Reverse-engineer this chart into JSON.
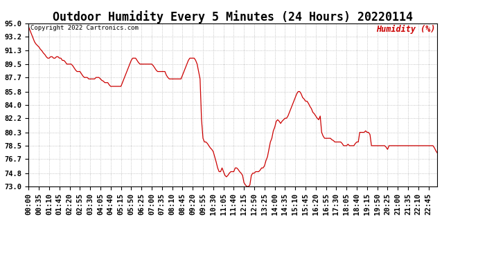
{
  "title": "Outdoor Humidity Every 5 Minutes (24 Hours) 20220114",
  "copyright_text": "Copyright 2022 Cartronics.com",
  "legend_text": "Humidity (%)",
  "line_color": "#cc0000",
  "legend_color": "#cc0000",
  "copyright_color": "#000000",
  "background_color": "#ffffff",
  "grid_color": "#aaaaaa",
  "ylim": [
    73.0,
    95.0
  ],
  "yticks": [
    73.0,
    74.8,
    76.7,
    78.5,
    80.3,
    82.2,
    84.0,
    85.8,
    87.7,
    89.5,
    91.3,
    93.2,
    95.0
  ],
  "title_fontsize": 12,
  "tick_fontsize": 7.5,
  "humidity_values": [
    94.5,
    94.0,
    93.5,
    93.0,
    92.5,
    92.2,
    92.0,
    91.8,
    91.5,
    91.3,
    91.0,
    90.8,
    90.5,
    90.3,
    90.3,
    90.5,
    90.5,
    90.3,
    90.3,
    90.5,
    90.5,
    90.3,
    90.3,
    90.0,
    90.0,
    89.8,
    89.5,
    89.5,
    89.5,
    89.5,
    89.3,
    89.0,
    88.7,
    88.5,
    88.5,
    88.5,
    88.2,
    87.9,
    87.7,
    87.7,
    87.7,
    87.5,
    87.5,
    87.5,
    87.5,
    87.5,
    87.7,
    87.7,
    87.7,
    87.5,
    87.3,
    87.2,
    87.0,
    87.0,
    87.0,
    86.7,
    86.5,
    86.5,
    86.5,
    86.5,
    86.5,
    86.5,
    86.5,
    86.5,
    87.0,
    87.5,
    88.0,
    88.5,
    89.0,
    89.5,
    90.0,
    90.3,
    90.3,
    90.3,
    90.0,
    89.7,
    89.5,
    89.5,
    89.5,
    89.5,
    89.5,
    89.5,
    89.5,
    89.5,
    89.5,
    89.3,
    89.0,
    88.7,
    88.5,
    88.5,
    88.5,
    88.5,
    88.5,
    88.5,
    88.0,
    87.7,
    87.5,
    87.5,
    87.5,
    87.5,
    87.5,
    87.5,
    87.5,
    87.5,
    87.5,
    88.0,
    88.5,
    89.0,
    89.5,
    90.0,
    90.3,
    90.3,
    90.3,
    90.3,
    90.0,
    89.5,
    88.5,
    87.5,
    82.0,
    79.5,
    79.0,
    79.0,
    78.8,
    78.5,
    78.2,
    78.0,
    77.7,
    77.0,
    76.3,
    75.5,
    75.0,
    75.0,
    75.5,
    75.0,
    74.5,
    74.3,
    74.5,
    74.8,
    75.0,
    75.0,
    75.0,
    75.5,
    75.5,
    75.3,
    75.0,
    74.8,
    74.5,
    73.5,
    73.2,
    73.0,
    73.0,
    73.2,
    74.5,
    74.8,
    74.8,
    75.0,
    75.0,
    75.0,
    75.2,
    75.5,
    75.5,
    75.8,
    76.5,
    77.0,
    78.0,
    79.0,
    79.5,
    80.5,
    81.0,
    81.8,
    82.0,
    81.8,
    81.5,
    81.8,
    82.0,
    82.2,
    82.2,
    82.5,
    83.0,
    83.5,
    84.0,
    84.5,
    85.0,
    85.5,
    85.8,
    85.8,
    85.5,
    85.0,
    84.8,
    84.5,
    84.5,
    84.2,
    83.8,
    83.5,
    83.0,
    82.8,
    82.5,
    82.2,
    82.0,
    82.5,
    80.3,
    79.8,
    79.5,
    79.5,
    79.5,
    79.5,
    79.5,
    79.3,
    79.2,
    79.0,
    79.0,
    79.0,
    79.0,
    79.0,
    78.8,
    78.5,
    78.5,
    78.5,
    78.7,
    78.5,
    78.5,
    78.5,
    78.5,
    78.8,
    79.0,
    79.0,
    80.3,
    80.3,
    80.3,
    80.3,
    80.5,
    80.3,
    80.3,
    80.0,
    78.5,
    78.5,
    78.5,
    78.5,
    78.5,
    78.5,
    78.5,
    78.5,
    78.5,
    78.5,
    78.3,
    78.0,
    78.5,
    78.5,
    78.5,
    78.5,
    78.5,
    78.5,
    78.5,
    78.5,
    78.5,
    78.5,
    78.5,
    78.5,
    78.5,
    78.5,
    78.5,
    78.5,
    78.5,
    78.5,
    78.5,
    78.5,
    78.5,
    78.5,
    78.5,
    78.5,
    78.5,
    78.5,
    78.5,
    78.5,
    78.5,
    78.5,
    78.5,
    78.2,
    77.8,
    77.5
  ]
}
